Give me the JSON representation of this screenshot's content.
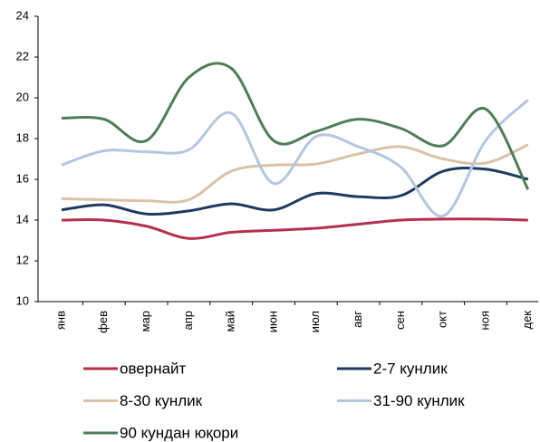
{
  "chart_data": {
    "type": "line",
    "categories": [
      "янв",
      "фев",
      "мар",
      "апр",
      "май",
      "июн",
      "июл",
      "авг",
      "сен",
      "окт",
      "ноя",
      "дек"
    ],
    "series": [
      {
        "name": "овернайт",
        "color": "#b5304e",
        "values": [
          14.0,
          14.0,
          13.7,
          13.1,
          13.4,
          13.5,
          13.6,
          13.8,
          14.0,
          14.05,
          14.05,
          14.0
        ]
      },
      {
        "name": "2-7 кунлик",
        "color": "#1f3a5f",
        "values": [
          14.5,
          14.75,
          14.3,
          14.45,
          14.8,
          14.5,
          15.3,
          15.15,
          15.2,
          16.4,
          16.5,
          16.0
        ]
      },
      {
        "name": "8-30 кунлик",
        "color": "#d9c2a7",
        "values": [
          15.05,
          15.0,
          14.95,
          15.0,
          16.4,
          16.7,
          16.75,
          17.25,
          17.6,
          17.0,
          16.8,
          17.7
        ]
      },
      {
        "name": "31-90 кунлик",
        "color": "#b3c6e0",
        "values": [
          16.7,
          17.4,
          17.35,
          17.45,
          19.25,
          15.8,
          18.1,
          17.6,
          16.6,
          14.2,
          17.9,
          19.9
        ]
      },
      {
        "name": "90 кундан юқори",
        "color": "#4e7d5a",
        "values": [
          19.0,
          18.95,
          17.9,
          21.0,
          21.45,
          17.9,
          18.35,
          18.95,
          18.5,
          17.65,
          19.45,
          15.5
        ]
      }
    ],
    "ylim": [
      10,
      24
    ],
    "yticks": [
      10,
      12,
      14,
      16,
      18,
      20,
      22,
      24
    ],
    "grid": false
  }
}
